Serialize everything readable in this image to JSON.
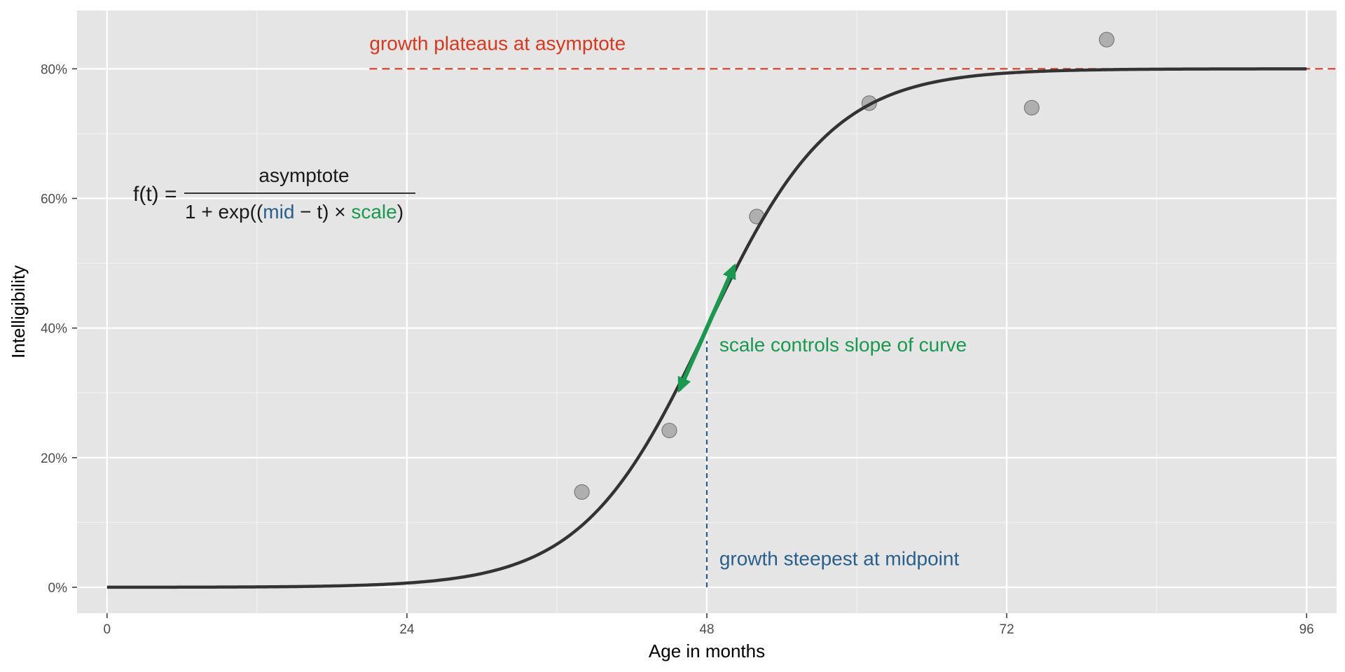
{
  "chart_data": {
    "type": "line",
    "xlabel": "Age in months",
    "ylabel": "Intelligibility",
    "xlim": [
      -2.4,
      98.4
    ],
    "ylim": [
      -0.04,
      0.89
    ],
    "x_ticks": [
      0,
      24,
      48,
      72,
      96
    ],
    "x_tick_labels": [
      "0",
      "24",
      "48",
      "72",
      "96"
    ],
    "x_minor_ticks": [
      12,
      36,
      60,
      84
    ],
    "y_ticks": [
      0,
      0.2,
      0.4,
      0.6,
      0.8
    ],
    "y_tick_labels": [
      "0%",
      "20%",
      "40%",
      "60%",
      "80%"
    ],
    "y_minor_ticks": [
      0.1,
      0.3,
      0.5,
      0.7
    ],
    "grid": true,
    "background_color": "#e5e5e5",
    "curve": {
      "asymptote": 0.8,
      "mid": 48,
      "scale": 0.2,
      "x_range": [
        0,
        96
      ],
      "color": "#333333"
    },
    "points": {
      "color": "#999999",
      "x": [
        38,
        45,
        52,
        61,
        74,
        80
      ],
      "y": [
        0.147,
        0.242,
        0.572,
        0.747,
        0.74,
        0.845
      ]
    },
    "annotations": {
      "asymptote": {
        "label": "growth plateaus at asymptote",
        "y": 0.8,
        "x_start": 21,
        "label_x": 21,
        "label_y": 0.84,
        "color": "#d9381e"
      },
      "midpoint": {
        "label": "growth steepest at midpoint",
        "x": 48,
        "y_top": 0.38,
        "label_x": 49,
        "label_y": 0.045,
        "color": "#2a5e8c"
      },
      "slope": {
        "label": "scale controls slope of curve",
        "from": [
          45.7,
          0.3
        ],
        "to": [
          50.3,
          0.5
        ],
        "label_x": 49,
        "label_y": 0.375,
        "color": "#1a9850"
      }
    },
    "formula": {
      "lhs": "f(t) =",
      "numerator": "asymptote",
      "denominator_parts": [
        {
          "text": "1 + exp((",
          "role": "plain"
        },
        {
          "text": "mid",
          "role": "mid"
        },
        {
          "text": " − t) × ",
          "role": "plain"
        },
        {
          "text": "scale",
          "role": "scale"
        },
        {
          "text": ")",
          "role": "plain"
        }
      ]
    }
  }
}
